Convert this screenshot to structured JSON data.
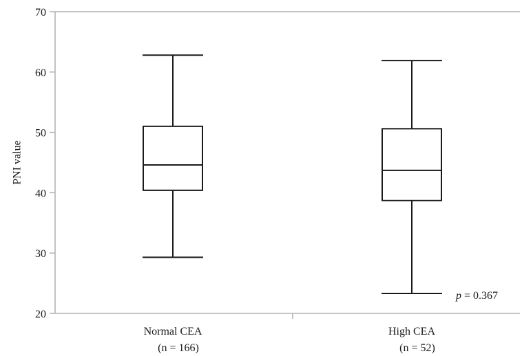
{
  "chart_data": {
    "type": "boxplot",
    "ylabel": "PNI value",
    "ylim": [
      20,
      70
    ],
    "yticks": [
      "20",
      "30",
      "40",
      "50",
      "60",
      "70"
    ],
    "grid": false,
    "categories": [
      {
        "label": "Normal CEA",
        "sublabel": "(n = 166)"
      },
      {
        "label": "High CEA",
        "sublabel": "(n = 52)"
      }
    ],
    "boxes": [
      {
        "min": 29.3,
        "q1": 40.4,
        "median": 44.6,
        "q3": 51.0,
        "max": 62.8
      },
      {
        "min": 23.3,
        "q1": 38.7,
        "median": 43.7,
        "q3": 50.6,
        "max": 61.9
      }
    ],
    "annotation": {
      "italic": "p",
      "text": " = 0.367"
    }
  }
}
